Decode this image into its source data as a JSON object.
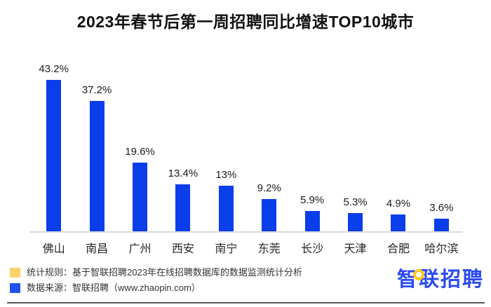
{
  "chart_data": {
    "type": "bar",
    "title": "2023年春节后第一周招聘同比增速TOP10城市",
    "categories": [
      "佛山",
      "南昌",
      "广州",
      "西安",
      "南宁",
      "东莞",
      "长沙",
      "天津",
      "合肥",
      "哈尔滨"
    ],
    "values": [
      43.2,
      37.2,
      19.6,
      13.4,
      13,
      9.2,
      5.9,
      5.3,
      4.9,
      3.6
    ],
    "value_labels": [
      "43.2%",
      "37.2%",
      "19.6%",
      "13.4%",
      "13%",
      "9.2%",
      "5.9%",
      "5.3%",
      "4.9%",
      "3.6%"
    ],
    "unit": "%",
    "ylim": [
      0,
      45
    ],
    "grid": false,
    "legend_position": "none",
    "bar_color": "#0a3eeb",
    "axis_line_color": "#d9d9d9"
  },
  "footer": {
    "notes": [
      {
        "swatch_color": "#fbd16c",
        "text": "统计规则：基于智联招聘2023年在线招聘数据库的数据监测统计分析"
      },
      {
        "swatch_color": "#2151f0",
        "text": "数据来源：智联招聘（www.zhaopin.com）"
      }
    ],
    "logo_text": "智联招聘",
    "logo_color": "#2b4bf0",
    "logo_accent_color": "#ffc81e",
    "rule_color": "#595959"
  }
}
